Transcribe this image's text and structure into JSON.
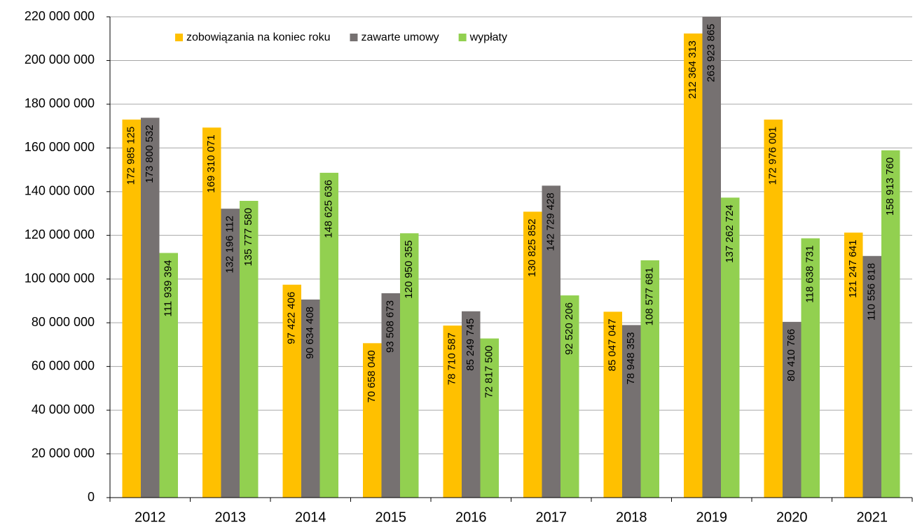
{
  "chart_data": {
    "type": "bar",
    "categories": [
      "2012",
      "2013",
      "2014",
      "2015",
      "2016",
      "2017",
      "2018",
      "2019",
      "2020",
      "2021"
    ],
    "series": [
      {
        "name": "zobowiązania na koniec roku",
        "color": "#ffc000",
        "values": [
          172985125,
          169310071,
          97422406,
          70658040,
          78710587,
          130825852,
          85047047,
          212364313,
          172976001,
          121247641
        ],
        "value_labels": [
          "172 985 125",
          "169 310 071",
          "97 422 406",
          "70 658 040",
          "78 710 587",
          "130 825 852",
          "85 047 047",
          "212 364 313",
          "172 976 001",
          "121 247 641"
        ]
      },
      {
        "name": "zawarte umowy",
        "color": "#767171",
        "values": [
          173800532,
          132196112,
          90634408,
          93508673,
          85249745,
          142729428,
          78948353,
          263923865,
          80410766,
          110556818
        ],
        "value_labels": [
          "173 800 532",
          "132 196 112",
          "90 634 408",
          "93 508 673",
          "85 249 745",
          "142 729 428",
          "78 948 353",
          "263 923 865",
          "80 410 766",
          "110 556 818"
        ]
      },
      {
        "name": "wypłaty",
        "color": "#92d050",
        "values": [
          111939394,
          135777580,
          148625636,
          120950355,
          72817500,
          92520206,
          108577681,
          137262724,
          118638731,
          158913760
        ],
        "value_labels": [
          "111 939 394",
          "135 777 580",
          "148 625 636",
          "120 950 355",
          "72 817 500",
          "92 520 206",
          "108 577 681",
          "137 262 724",
          "118 638 731",
          "158 913 760"
        ]
      }
    ],
    "ylim": [
      0,
      220000000
    ],
    "yticks": [
      0,
      {
        "value": 20000000,
        "label": "20 000 000"
      },
      {
        "value": 40000000,
        "label": "40 000 000"
      },
      {
        "value": 60000000,
        "label": "60 000 000"
      },
      {
        "value": 80000000,
        "label": "80 000 000"
      },
      {
        "value": 100000000,
        "label": "100 000 000"
      },
      {
        "value": 120000000,
        "label": "120 000 000"
      },
      {
        "value": 140000000,
        "label": "140 000 000"
      },
      {
        "value": 160000000,
        "label": "160 000 000"
      },
      {
        "value": 180000000,
        "label": "180 000 000"
      },
      {
        "value": 200000000,
        "label": "200 000 000"
      },
      {
        "value": 220000000,
        "label": "220 000 000"
      }
    ],
    "grid": true,
    "legend": "top"
  }
}
